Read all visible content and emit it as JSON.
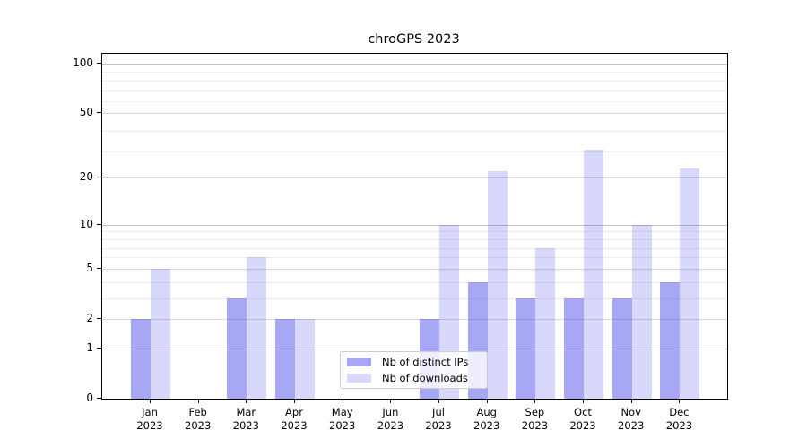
{
  "title": "chroGPS 2023",
  "colors": {
    "ips_bar": "rgba(0,0,230,0.345)",
    "downloads_bar": "rgba(0,0,230,0.153)",
    "ips_bar_hex_on_white": "#a8a8f6",
    "downloads_bar_hex_on_white": "#d8d8f9",
    "axis": "#000000",
    "grid_decade": "#c3c3c3",
    "grid_major": "#dadada",
    "grid_minor": "#eeeeee"
  },
  "legend": {
    "items": [
      {
        "label": "Nb of distinct IPs",
        "color_key": "ips_bar"
      },
      {
        "label": "Nb of downloads",
        "color_key": "downloads_bar"
      }
    ]
  },
  "chart_data": {
    "type": "bar",
    "title": "chroGPS 2023",
    "xlabel": "",
    "ylabel": "",
    "yscale": "log1p",
    "ylim": [
      0,
      115
    ],
    "grid": "horizontal",
    "legend_position": "bottom-center-inside",
    "year": "2023",
    "categories": [
      "Jan",
      "Feb",
      "Mar",
      "Apr",
      "May",
      "Jun",
      "Jul",
      "Aug",
      "Sep",
      "Oct",
      "Nov",
      "Dec"
    ],
    "series": [
      {
        "name": "Nb of distinct IPs",
        "values": [
          2,
          0,
          3,
          2,
          0,
          0,
          2,
          4,
          3,
          3,
          3,
          4
        ]
      },
      {
        "name": "Nb of downloads",
        "values": [
          5,
          0,
          6,
          2,
          0,
          0,
          10,
          22,
          7,
          30,
          10,
          23
        ]
      }
    ],
    "yticks": [
      0,
      1,
      2,
      5,
      10,
      20,
      50,
      100
    ],
    "decade_ticks": [
      1,
      10,
      100
    ],
    "minor_gridline_values": [
      3,
      4,
      6,
      7,
      8,
      9,
      29,
      39,
      59,
      69,
      79,
      89
    ]
  }
}
